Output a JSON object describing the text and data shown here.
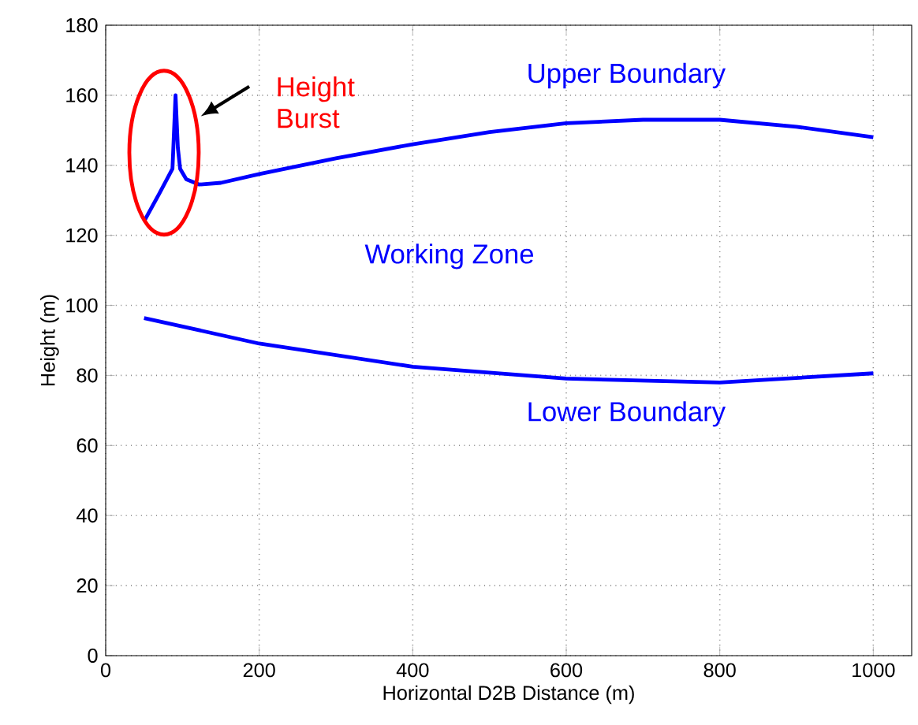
{
  "chart_data": {
    "type": "line",
    "xlabel": "Horizontal D2B Distance (m)",
    "ylabel": "Height (m)",
    "xlim": [
      0,
      1050
    ],
    "ylim": [
      0,
      180
    ],
    "xticks": [
      0,
      200,
      400,
      600,
      800,
      1000
    ],
    "yticks": [
      0,
      20,
      40,
      60,
      80,
      100,
      120,
      140,
      160,
      180
    ],
    "grid": true,
    "line_style": "solid",
    "marker": "none",
    "series": [
      {
        "color": "#0000ff",
        "x": [
          50,
          70,
          87,
          91,
          94,
          97,
          105,
          122,
          150,
          200,
          300,
          400,
          500,
          600,
          700,
          800,
          900,
          1000
        ],
        "values": [
          124,
          132,
          139,
          160,
          145,
          139,
          136,
          134.5,
          135,
          137.5,
          142,
          146,
          149.5,
          152,
          153,
          153,
          151,
          148
        ]
      },
      {
        "color": "#0000ff",
        "x": [
          50,
          200,
          400,
          600,
          800,
          1000
        ],
        "values": [
          96.4,
          89.1,
          82.5,
          79.1,
          78,
          80.6
        ]
      }
    ],
    "annotations": [
      "Upper Boundary",
      "Working Zone",
      "Lower Boundary",
      "Height Burst"
    ]
  }
}
